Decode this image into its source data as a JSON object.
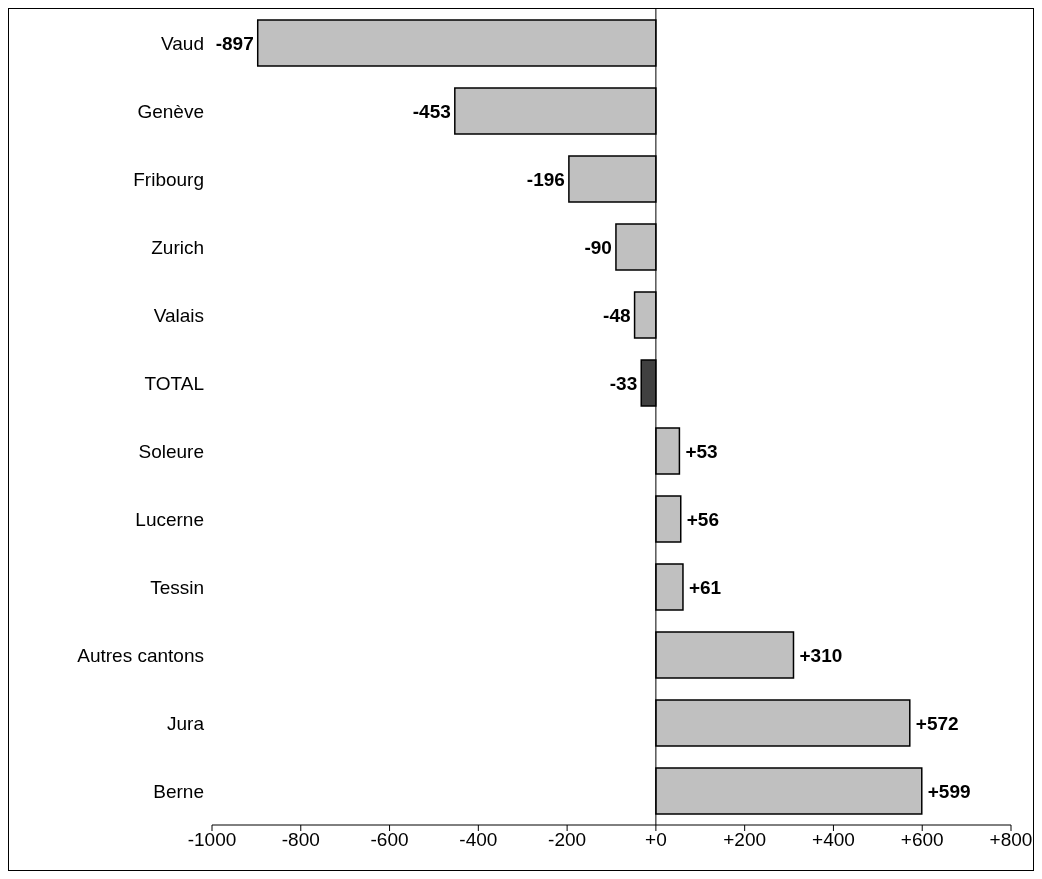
{
  "chart_data": {
    "type": "bar",
    "orientation": "horizontal",
    "categories": [
      "Vaud",
      "Genève",
      "Fribourg",
      "Zurich",
      "Valais",
      "TOTAL",
      "Soleure",
      "Lucerne",
      "Tessin",
      "Autres cantons",
      "Jura",
      "Berne"
    ],
    "values": [
      -897,
      -453,
      -196,
      -90,
      -48,
      -33,
      53,
      56,
      61,
      310,
      572,
      599
    ],
    "colors": [
      "#c0c0c0",
      "#c0c0c0",
      "#c0c0c0",
      "#c0c0c0",
      "#c0c0c0",
      "#404040",
      "#c0c0c0",
      "#c0c0c0",
      "#c0c0c0",
      "#c0c0c0",
      "#c0c0c0",
      "#c0c0c0"
    ],
    "value_labels": [
      "-897",
      "-453",
      "-196",
      "-90",
      "-48",
      "-33",
      "+53",
      "+56",
      "+61",
      "+310",
      "+572",
      "+599"
    ],
    "xlim": [
      -1000,
      800
    ],
    "xticks": [
      -1000,
      -800,
      -600,
      -400,
      -200,
      {
        "value": 0,
        "label": "+0"
      },
      {
        "value": 200,
        "label": "+200"
      },
      {
        "value": 400,
        "label": "+400"
      },
      {
        "value": 600,
        "label": "+600"
      },
      {
        "value": 800,
        "label": "+800"
      }
    ]
  }
}
